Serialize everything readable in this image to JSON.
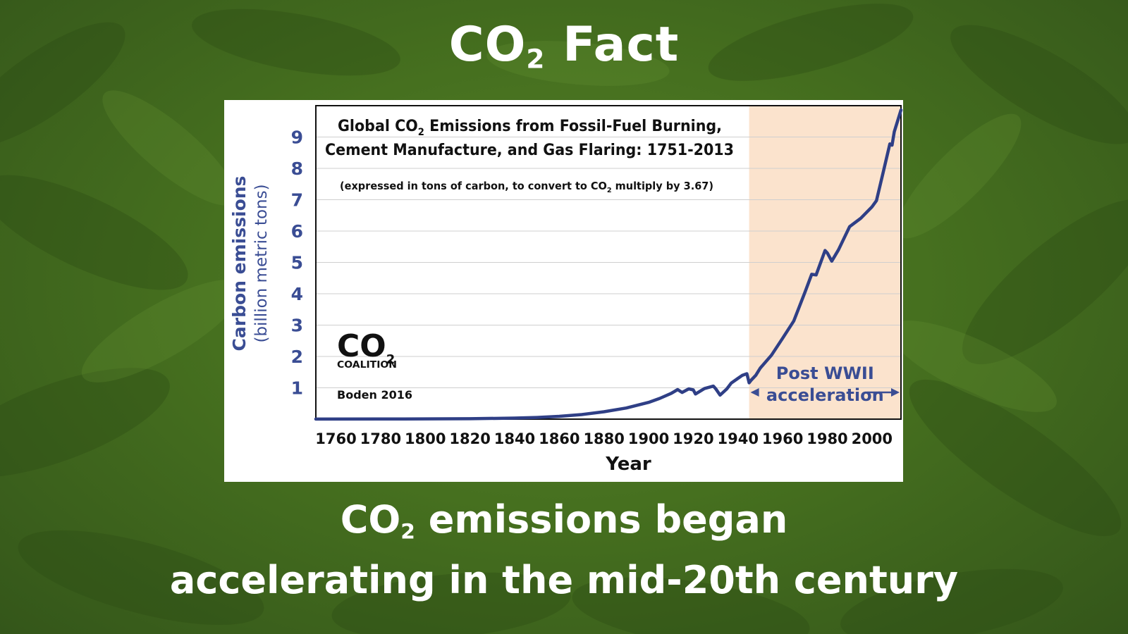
{
  "slide": {
    "title": "CO",
    "title_sub": "2",
    "title_rest": "Fact",
    "caption_line1_prefix": "CO",
    "caption_line1_sub": "2",
    "caption_line1_rest": "emissions began",
    "caption_line2": "accelerating in the mid-20th century"
  },
  "colors": {
    "background": "#4a7424",
    "line": "#2f3f86",
    "axis_text": "#3a4d94",
    "highlight": "#fbe3cd"
  },
  "chart_data": {
    "type": "line",
    "title_line1_prefix": "Global CO",
    "title_line1_sub": "2",
    "title_line1_rest": "Emissions from Fossil-Fuel Burning,",
    "title_line2": "Cement Manufacture, and Gas Flaring: 1751-2013",
    "note_prefix": "(expressed in tons of carbon, to convert to CO",
    "note_sub": "2",
    "note_rest": "multiply by 3.67)",
    "xlabel": "Year",
    "ylabel": "Carbon emissions",
    "ylabel_sub": "(billion metric tons)",
    "xlim": [
      1751,
      2013
    ],
    "ylim": [
      0,
      10
    ],
    "x_ticks": [
      1760,
      1780,
      1800,
      1820,
      1840,
      1860,
      1880,
      1900,
      1920,
      1940,
      1960,
      1980,
      2000
    ],
    "y_ticks": [
      1,
      2,
      3,
      4,
      5,
      6,
      7,
      8,
      9
    ],
    "grid": true,
    "highlight": {
      "from": 1945,
      "to": 2013,
      "label_line1": "Post WWII",
      "label_line2": "acceleration"
    },
    "logo_text_main": "CO",
    "logo_text_sub": "2",
    "logo_text_name": "COALITION",
    "source": "Boden 2016",
    "series": [
      {
        "x": [
          1751,
          1780,
          1800,
          1820,
          1840,
          1850,
          1860,
          1870,
          1880,
          1890,
          1900,
          1905,
          1910,
          1913,
          1915,
          1918,
          1920,
          1921,
          1925,
          1929,
          1930,
          1932,
          1935,
          1937,
          1940,
          1942,
          1944,
          1945,
          1946,
          1948,
          1950,
          1955,
          1960,
          1965,
          1970,
          1973,
          1975,
          1979,
          1980,
          1982,
          1985,
          1990,
          1995,
          2000,
          2002,
          2005,
          2008,
          2009,
          2010,
          2013
        ],
        "y": [
          0.003,
          0.005,
          0.008,
          0.014,
          0.033,
          0.054,
          0.091,
          0.147,
          0.236,
          0.356,
          0.534,
          0.663,
          0.819,
          0.943,
          0.852,
          0.966,
          0.932,
          0.803,
          0.975,
          1.053,
          0.973,
          0.767,
          0.963,
          1.15,
          1.3,
          1.4,
          1.45,
          1.16,
          1.25,
          1.4,
          1.63,
          2.04,
          2.58,
          3.13,
          4.05,
          4.62,
          4.6,
          5.38,
          5.3,
          5.04,
          5.4,
          6.14,
          6.41,
          6.77,
          6.97,
          7.87,
          8.78,
          8.74,
          9.17,
          9.86
        ]
      }
    ]
  }
}
